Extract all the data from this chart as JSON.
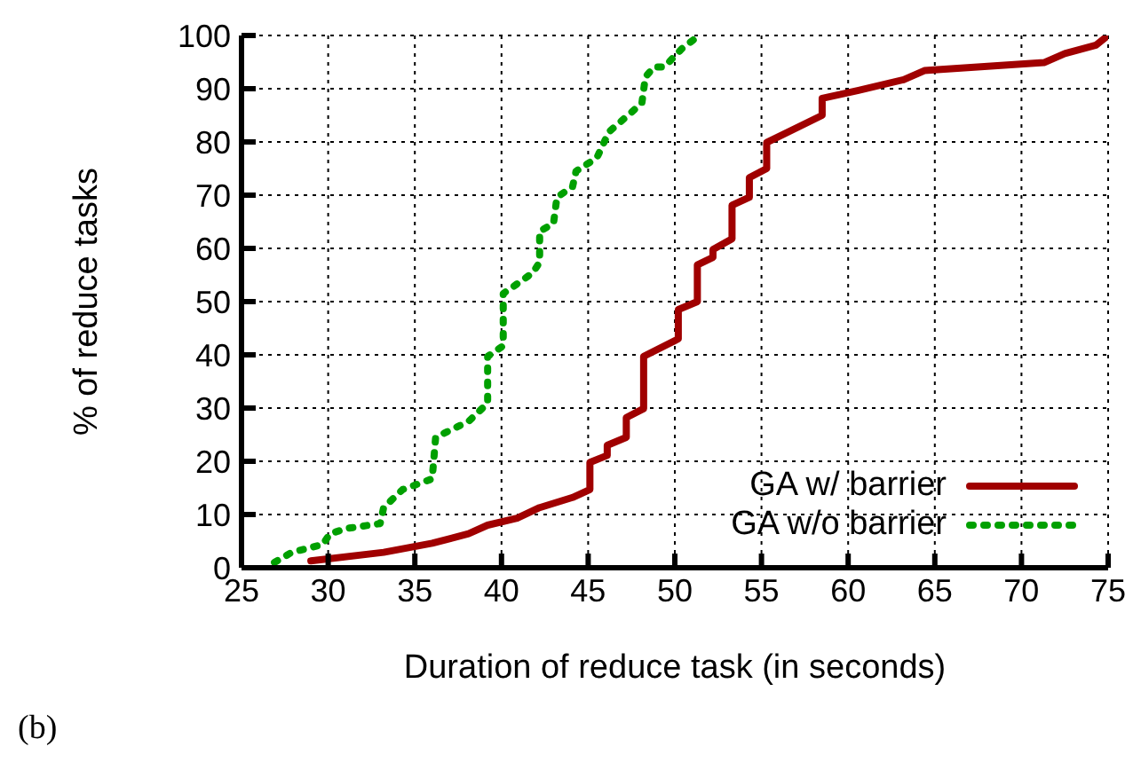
{
  "chart_data": {
    "type": "line",
    "xlabel": "Duration of reduce task (in seconds)",
    "ylabel": "% of reduce tasks",
    "annotations": [
      "(b)"
    ],
    "xlim": [
      25,
      75
    ],
    "xticks": [
      25,
      30,
      35,
      40,
      45,
      50,
      55,
      60,
      65,
      70,
      75
    ],
    "ylim": [
      0,
      100
    ],
    "yticks": [
      0,
      10,
      20,
      30,
      40,
      50,
      60,
      70,
      80,
      90,
      100
    ],
    "grid": true,
    "legend": "bottom right",
    "marker": "none",
    "series": [
      {
        "name": "GA w/ barrier",
        "color": "#a00000",
        "line_style": "solid",
        "x": [
          29,
          33.2,
          36,
          38.1,
          39.2,
          40.9,
          42.2,
          44.1,
          45.1,
          45.1,
          46.1,
          46.1,
          47.2,
          47.2,
          48.2,
          48.2,
          50.2,
          50.2,
          51.3,
          51.3,
          52.2,
          52.2,
          53.3,
          53.3,
          54.3,
          54.3,
          55.3,
          55.3,
          58.5,
          58.5,
          60.6,
          63.2,
          64.4,
          71.3,
          72.5,
          74.3,
          75
        ],
        "values": [
          1.3,
          2.9,
          4.6,
          6.4,
          8,
          9.3,
          11.3,
          13.2,
          14.7,
          19.8,
          21.1,
          23,
          24.5,
          28.2,
          29.9,
          39.7,
          43,
          48.5,
          50,
          56.9,
          58.3,
          59.8,
          61.8,
          68.1,
          69.6,
          73.3,
          75,
          79.9,
          85,
          88.2,
          89.7,
          91.7,
          93.4,
          94.9,
          96.6,
          98.2,
          100
        ]
      },
      {
        "name": "GA w/o barrier",
        "color": "#00a000",
        "line_style": "dotted",
        "x": [
          26.9,
          27.9,
          29.7,
          30.1,
          31.1,
          33,
          33.2,
          34.3,
          36,
          36.2,
          38.1,
          39.2,
          39.2,
          40.1,
          40.1,
          41.8,
          42.2,
          42.2,
          43,
          43.2,
          44.1,
          44.3,
          45.5,
          46.2,
          47.4,
          48.1,
          48.3,
          48.8,
          49.4,
          50.4,
          51.2
        ],
        "values": [
          1,
          2.9,
          4.4,
          6.4,
          7.4,
          8.3,
          11.3,
          14.7,
          16.7,
          24.5,
          27.5,
          30.9,
          39.7,
          41.7,
          51.5,
          55.4,
          57.4,
          63.2,
          64.7,
          69.6,
          71.6,
          74.5,
          77,
          81.9,
          85.3,
          87.3,
          92.2,
          94.1,
          94.1,
          97.5,
          99.5
        ]
      }
    ]
  }
}
